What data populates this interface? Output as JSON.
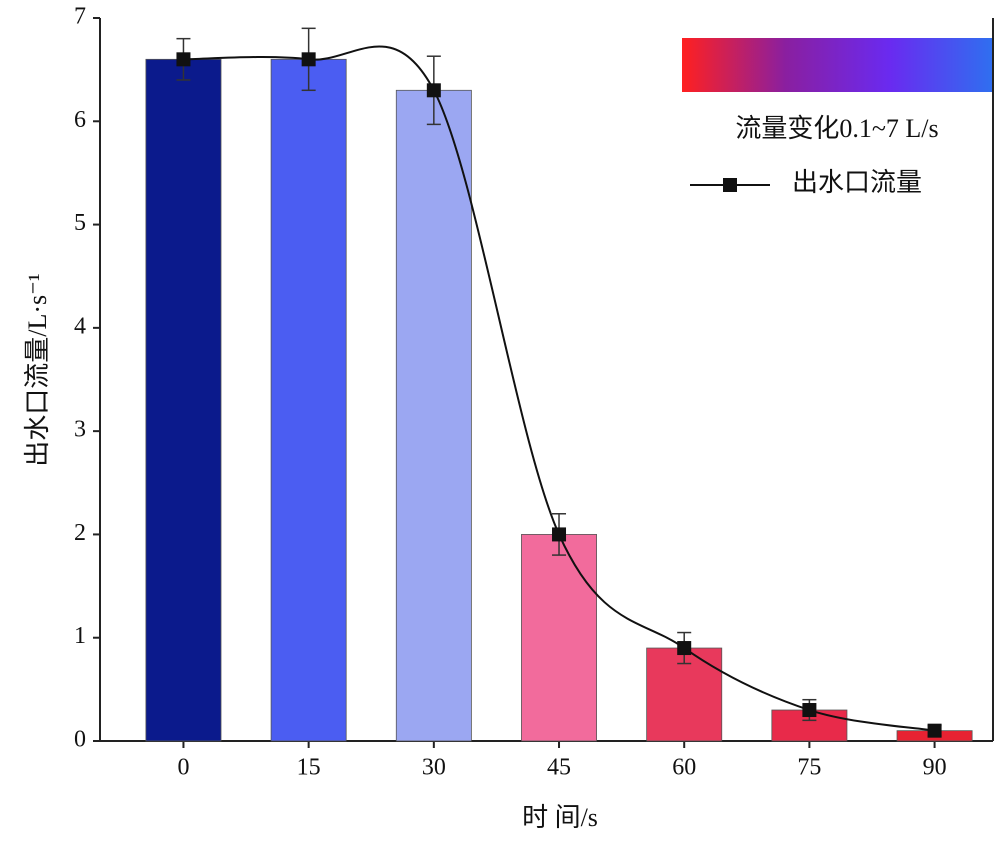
{
  "chart_data": {
    "type": "bar",
    "xlabel": "时 间/s",
    "ylabel": "出水口流量/L·s⁻¹",
    "x": [
      0,
      15,
      30,
      45,
      60,
      75,
      90
    ],
    "values": [
      6.6,
      6.6,
      6.3,
      2.0,
      0.9,
      0.3,
      0.1
    ],
    "errors": [
      0.2,
      0.3,
      0.33,
      0.2,
      0.15,
      0.1,
      0.05
    ],
    "bar_colors": [
      "#0b1a8c",
      "#4b5df2",
      "#9ba7f2",
      "#f26b9c",
      "#e8395c",
      "#e82a4a",
      "#e82232"
    ],
    "line_name": "出水口流量",
    "line_color": "#111111",
    "colorbar_label": "流量变化0.1~7 L/s",
    "colorbar_colors": [
      "#ff2020",
      "#8a1fa0",
      "#6a2af0",
      "#2f6ff0"
    ],
    "xlim": [
      -10,
      97
    ],
    "xticks": [
      0,
      15,
      30,
      45,
      60,
      75,
      90
    ],
    "ylim": [
      0,
      7
    ],
    "yticks": [
      0,
      1,
      2,
      3,
      4,
      5,
      6,
      7
    ]
  }
}
